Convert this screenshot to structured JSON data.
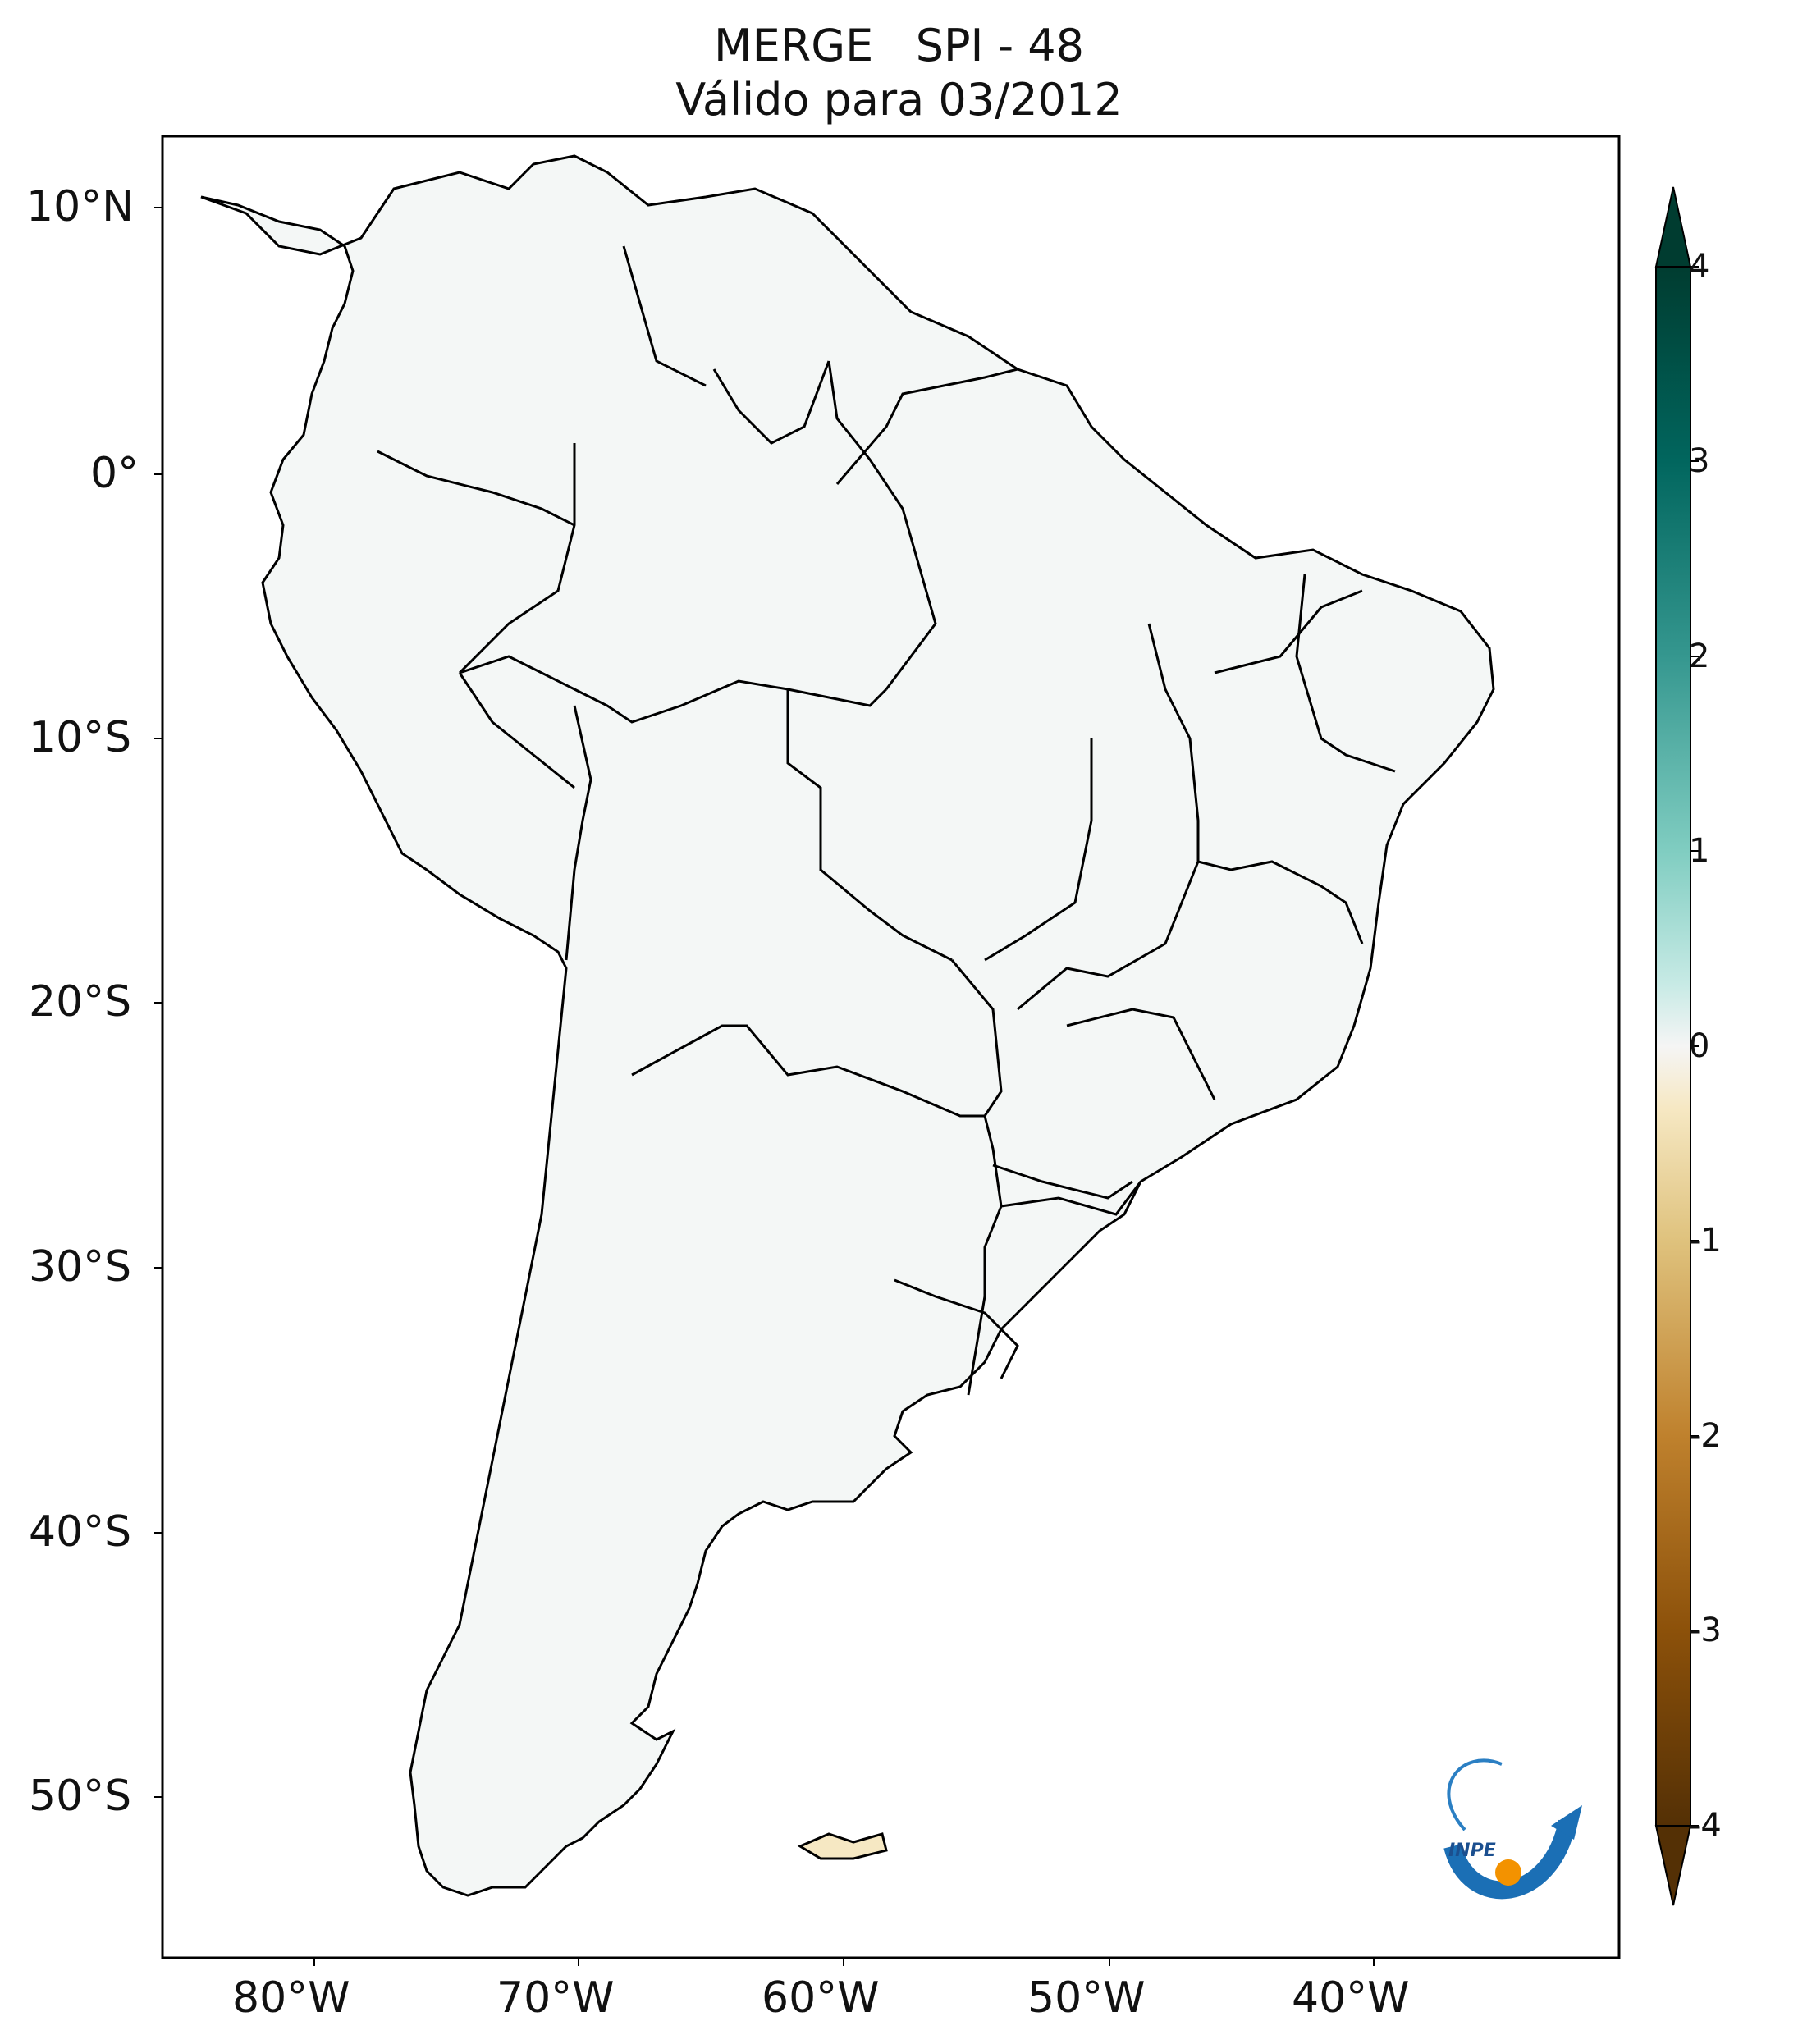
{
  "title": {
    "line1": "MERGE   SPI - 48",
    "line2": "Válido para 03/2012"
  },
  "axes": {
    "lat_ticks": [
      "10°N",
      "0°",
      "10°S",
      "20°S",
      "30°S",
      "40°S",
      "50°S"
    ],
    "lon_ticks": [
      "80°W",
      "70°W",
      "60°W",
      "50°W",
      "40°W"
    ]
  },
  "colorbar": {
    "ticks": [
      "4",
      "3",
      "2",
      "1",
      "0",
      "-1",
      "-2",
      "-3",
      "-4"
    ],
    "colors": {
      "max": "#003c30",
      "high": "#01665e",
      "mid_high": "#5ab4ac",
      "low_pos": "#c7eae5",
      "zero": "#f5f5f5",
      "low_neg": "#f6e8c3",
      "mid_low": "#d8b365",
      "low": "#8c510a",
      "min": "#543005"
    }
  },
  "logo": {
    "text": "INPE"
  }
}
